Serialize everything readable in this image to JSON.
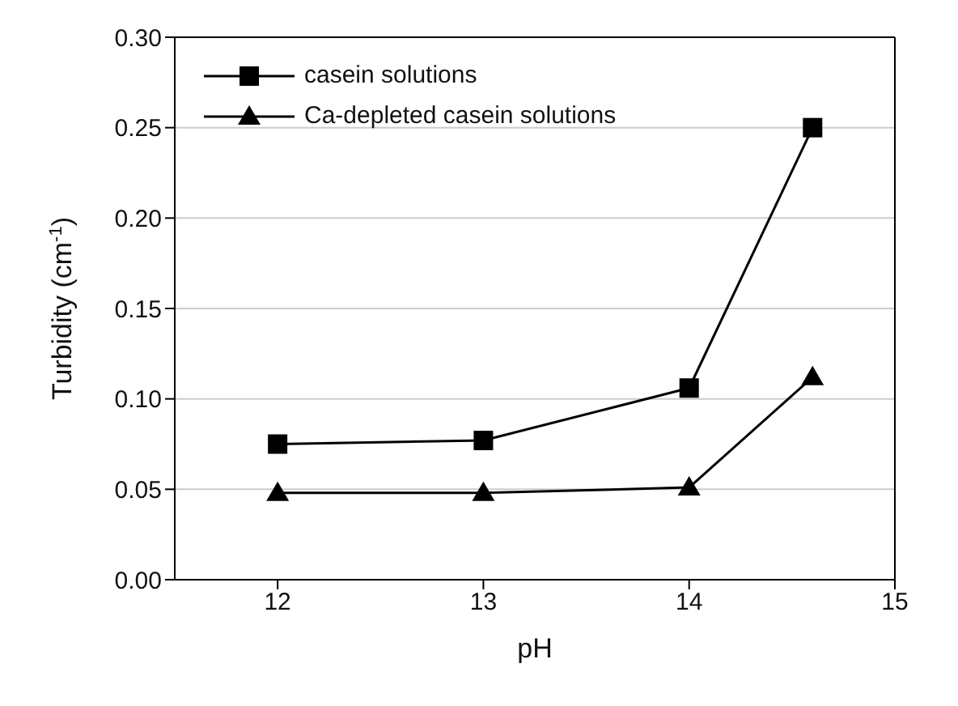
{
  "chart_data": {
    "type": "line",
    "xlabel": "pH",
    "ylabel": "Turbidity (cm$^{-1}$)",
    "xlim": [
      11.5,
      15
    ],
    "xticks": [
      12,
      13,
      14,
      15
    ],
    "ylim": [
      0,
      0.3
    ],
    "yticks": [
      {
        "value": 0,
        "label": "0.00"
      },
      {
        "value": 0.05,
        "label": "0.05"
      },
      {
        "value": 0.1,
        "label": "0.10"
      },
      {
        "value": 0.15,
        "label": "0.15"
      },
      {
        "value": 0.2,
        "label": "0.20"
      },
      {
        "value": 0.25,
        "label": "0.25"
      },
      {
        "value": 0.3,
        "label": "0.30"
      }
    ],
    "grid": "y",
    "legend": "top left",
    "series": [
      {
        "name": "casein solutions",
        "color": "#000000",
        "marker": "square",
        "x": [
          12,
          13,
          14,
          14.6
        ],
        "values": [
          0.075,
          0.077,
          0.106,
          0.25
        ]
      },
      {
        "name": "Ca-depleted casein solutions",
        "color": "#000000",
        "marker": "triangle",
        "x": [
          12,
          13,
          14,
          14.6
        ],
        "values": [
          0.048,
          0.048,
          0.051,
          0.112
        ]
      }
    ]
  }
}
